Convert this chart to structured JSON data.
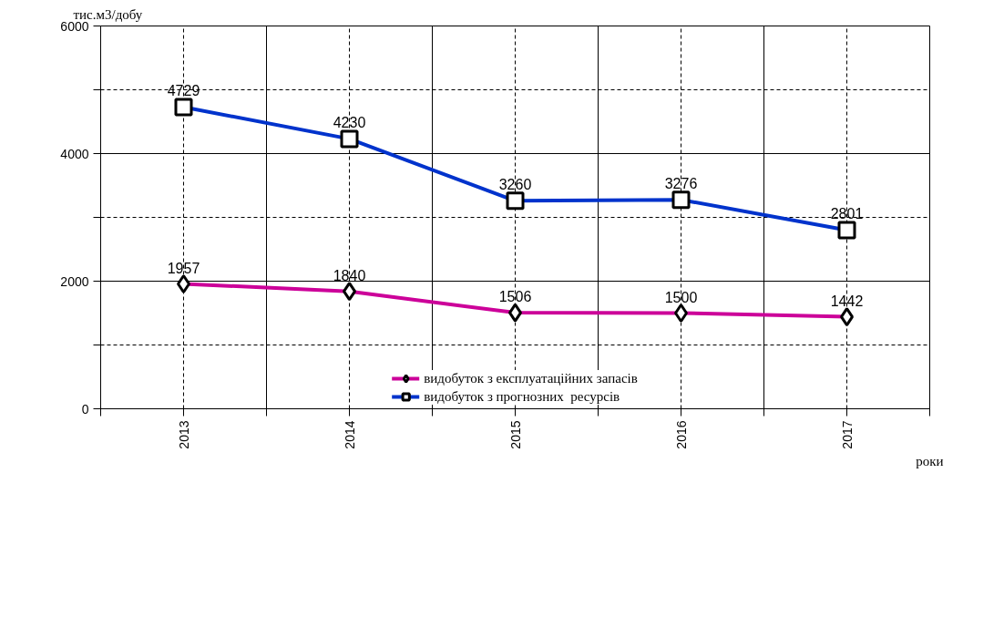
{
  "chart_data": {
    "type": "line",
    "ylabel": "тис.м3/добу",
    "xlabel": "роки",
    "categories": [
      "2013",
      "2014",
      "2015",
      "2016",
      "2017"
    ],
    "series": [
      {
        "name": "видобуток з експлуатаційних запасів",
        "color": "#cc0099",
        "marker": "diamond",
        "values": [
          1957,
          1840,
          1506,
          1500,
          1442
        ]
      },
      {
        "name": "видобуток з прогнозних  ресурсів",
        "color": "#0033cc",
        "marker": "square",
        "values": [
          4729,
          4230,
          3260,
          3276,
          2801
        ]
      }
    ],
    "ylim": [
      0,
      6000
    ],
    "yticks": [
      0,
      {
        "value": 1000,
        "label": null
      },
      2000,
      {
        "value": 3000,
        "label": null
      },
      4000,
      {
        "value": 5000,
        "label": null
      },
      6000
    ],
    "grid": true,
    "legend": "bottom",
    "data_labels": true,
    "line_style": "solid"
  }
}
